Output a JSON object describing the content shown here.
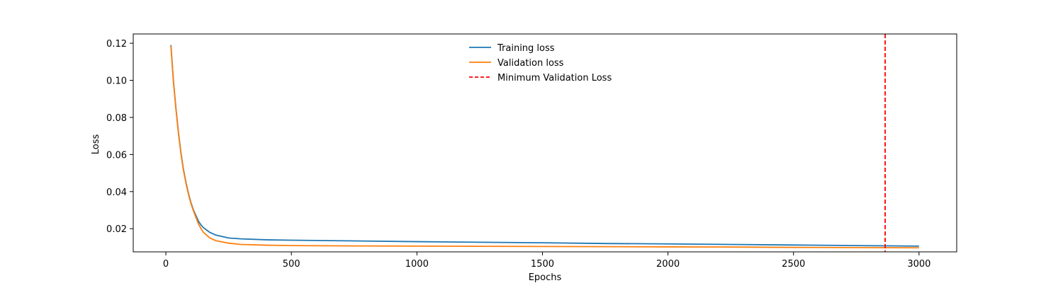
{
  "chart_data": {
    "type": "line",
    "title": "",
    "xlabel": "Epochs",
    "ylabel": "Loss",
    "xlim": [
      -130,
      3150
    ],
    "ylim": [
      0.0075,
      0.125
    ],
    "xticks": [
      0,
      500,
      1000,
      1500,
      2000,
      2500,
      3000
    ],
    "xtick_labels": [
      "0",
      "500",
      "1000",
      "1500",
      "2000",
      "2500",
      "3000"
    ],
    "yticks": [
      0.02,
      0.04,
      0.06,
      0.08,
      0.1,
      0.12
    ],
    "ytick_labels": [
      "0.02",
      "0.04",
      "0.06",
      "0.08",
      "0.10",
      "0.12"
    ],
    "grid": false,
    "legend_position": "upper-center",
    "series": [
      {
        "name": "Training loss",
        "color": "#1f77b4",
        "style": "solid",
        "x": [
          20,
          30,
          40,
          50,
          60,
          70,
          80,
          90,
          100,
          110,
          120,
          130,
          140,
          150,
          175,
          200,
          250,
          300,
          400,
          500,
          750,
          1000,
          1250,
          1500,
          1750,
          2000,
          2250,
          2500,
          2750,
          3000
        ],
        "y": [
          0.119,
          0.1,
          0.085,
          0.072,
          0.061,
          0.052,
          0.045,
          0.039,
          0.034,
          0.03,
          0.027,
          0.024,
          0.022,
          0.0205,
          0.018,
          0.0165,
          0.015,
          0.0145,
          0.014,
          0.0138,
          0.0134,
          0.013,
          0.0127,
          0.0124,
          0.012,
          0.0118,
          0.0115,
          0.0112,
          0.0109,
          0.0106
        ]
      },
      {
        "name": "Validation loss",
        "color": "#ff7f0e",
        "style": "solid",
        "x": [
          20,
          30,
          40,
          50,
          60,
          70,
          80,
          90,
          100,
          110,
          120,
          130,
          140,
          150,
          175,
          200,
          250,
          300,
          400,
          500,
          750,
          1000,
          1250,
          1500,
          1750,
          2000,
          2250,
          2500,
          2750,
          3000
        ],
        "y": [
          0.1185,
          0.0995,
          0.0845,
          0.0715,
          0.0605,
          0.0515,
          0.0445,
          0.0385,
          0.0335,
          0.0295,
          0.026,
          0.0225,
          0.02,
          0.018,
          0.015,
          0.0135,
          0.0122,
          0.0115,
          0.0111,
          0.0109,
          0.0107,
          0.0106,
          0.0105,
          0.0104,
          0.0103,
          0.0102,
          0.0101,
          0.0099,
          0.0098,
          0.0097
        ]
      }
    ],
    "vline": {
      "name": "Minimum Validation Loss",
      "x": 2865,
      "color": "#ff0000",
      "style": "dashed"
    }
  }
}
